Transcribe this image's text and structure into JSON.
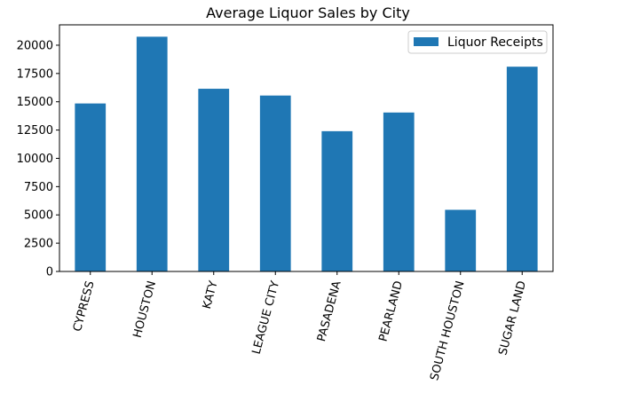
{
  "chart_data": {
    "type": "bar",
    "title": "Average Liquor Sales by City",
    "xlabel": "",
    "ylabel": "",
    "categories": [
      "CYPRESS",
      "HOUSTON",
      "KATY",
      "LEAGUE CITY",
      "PASADENA",
      "PEARLAND",
      "SOUTH HOUSTON",
      "SUGAR LAND"
    ],
    "series": [
      {
        "name": "Liquor Receipts",
        "color": "#1f77b4",
        "values": [
          14850,
          20750,
          16150,
          15550,
          12400,
          14050,
          5450,
          18100
        ]
      }
    ],
    "ylim": [
      0,
      21800
    ],
    "yticks": [
      0,
      2500,
      5000,
      7500,
      10000,
      12500,
      15000,
      17500,
      20000
    ],
    "grid": false,
    "legend_position": "upper right"
  }
}
